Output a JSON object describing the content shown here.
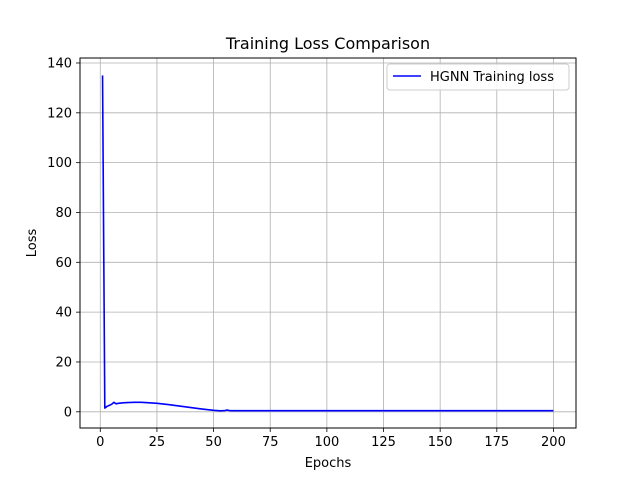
{
  "chart_data": {
    "type": "line",
    "title": "Training Loss Comparison",
    "xlabel": "Epochs",
    "ylabel": "Loss",
    "xlim": [
      -8.95,
      209.95
    ],
    "ylim": [
      -6.5,
      142
    ],
    "xticks": [
      0,
      25,
      50,
      75,
      100,
      125,
      150,
      175,
      200
    ],
    "yticks": [
      0,
      20,
      40,
      60,
      80,
      100,
      120,
      140
    ],
    "grid": true,
    "legend_position": "top-right",
    "series": [
      {
        "name": "HGNN Training loss",
        "color": "#0000ff",
        "x": [
          1,
          2,
          3,
          4,
          5,
          6,
          7,
          8,
          10,
          12,
          15,
          18,
          20,
          25,
          30,
          35,
          40,
          45,
          50,
          53,
          55,
          56,
          57,
          58,
          60,
          70,
          80,
          100,
          125,
          150,
          175,
          200
        ],
        "y": [
          135,
          1.5,
          2.2,
          2.6,
          3.0,
          3.8,
          3.2,
          3.4,
          3.6,
          3.7,
          3.8,
          3.8,
          3.7,
          3.4,
          2.9,
          2.3,
          1.7,
          1.1,
          0.6,
          0.4,
          0.5,
          0.7,
          0.5,
          0.45,
          0.45,
          0.45,
          0.45,
          0.45,
          0.45,
          0.45,
          0.45,
          0.45
        ]
      }
    ]
  }
}
